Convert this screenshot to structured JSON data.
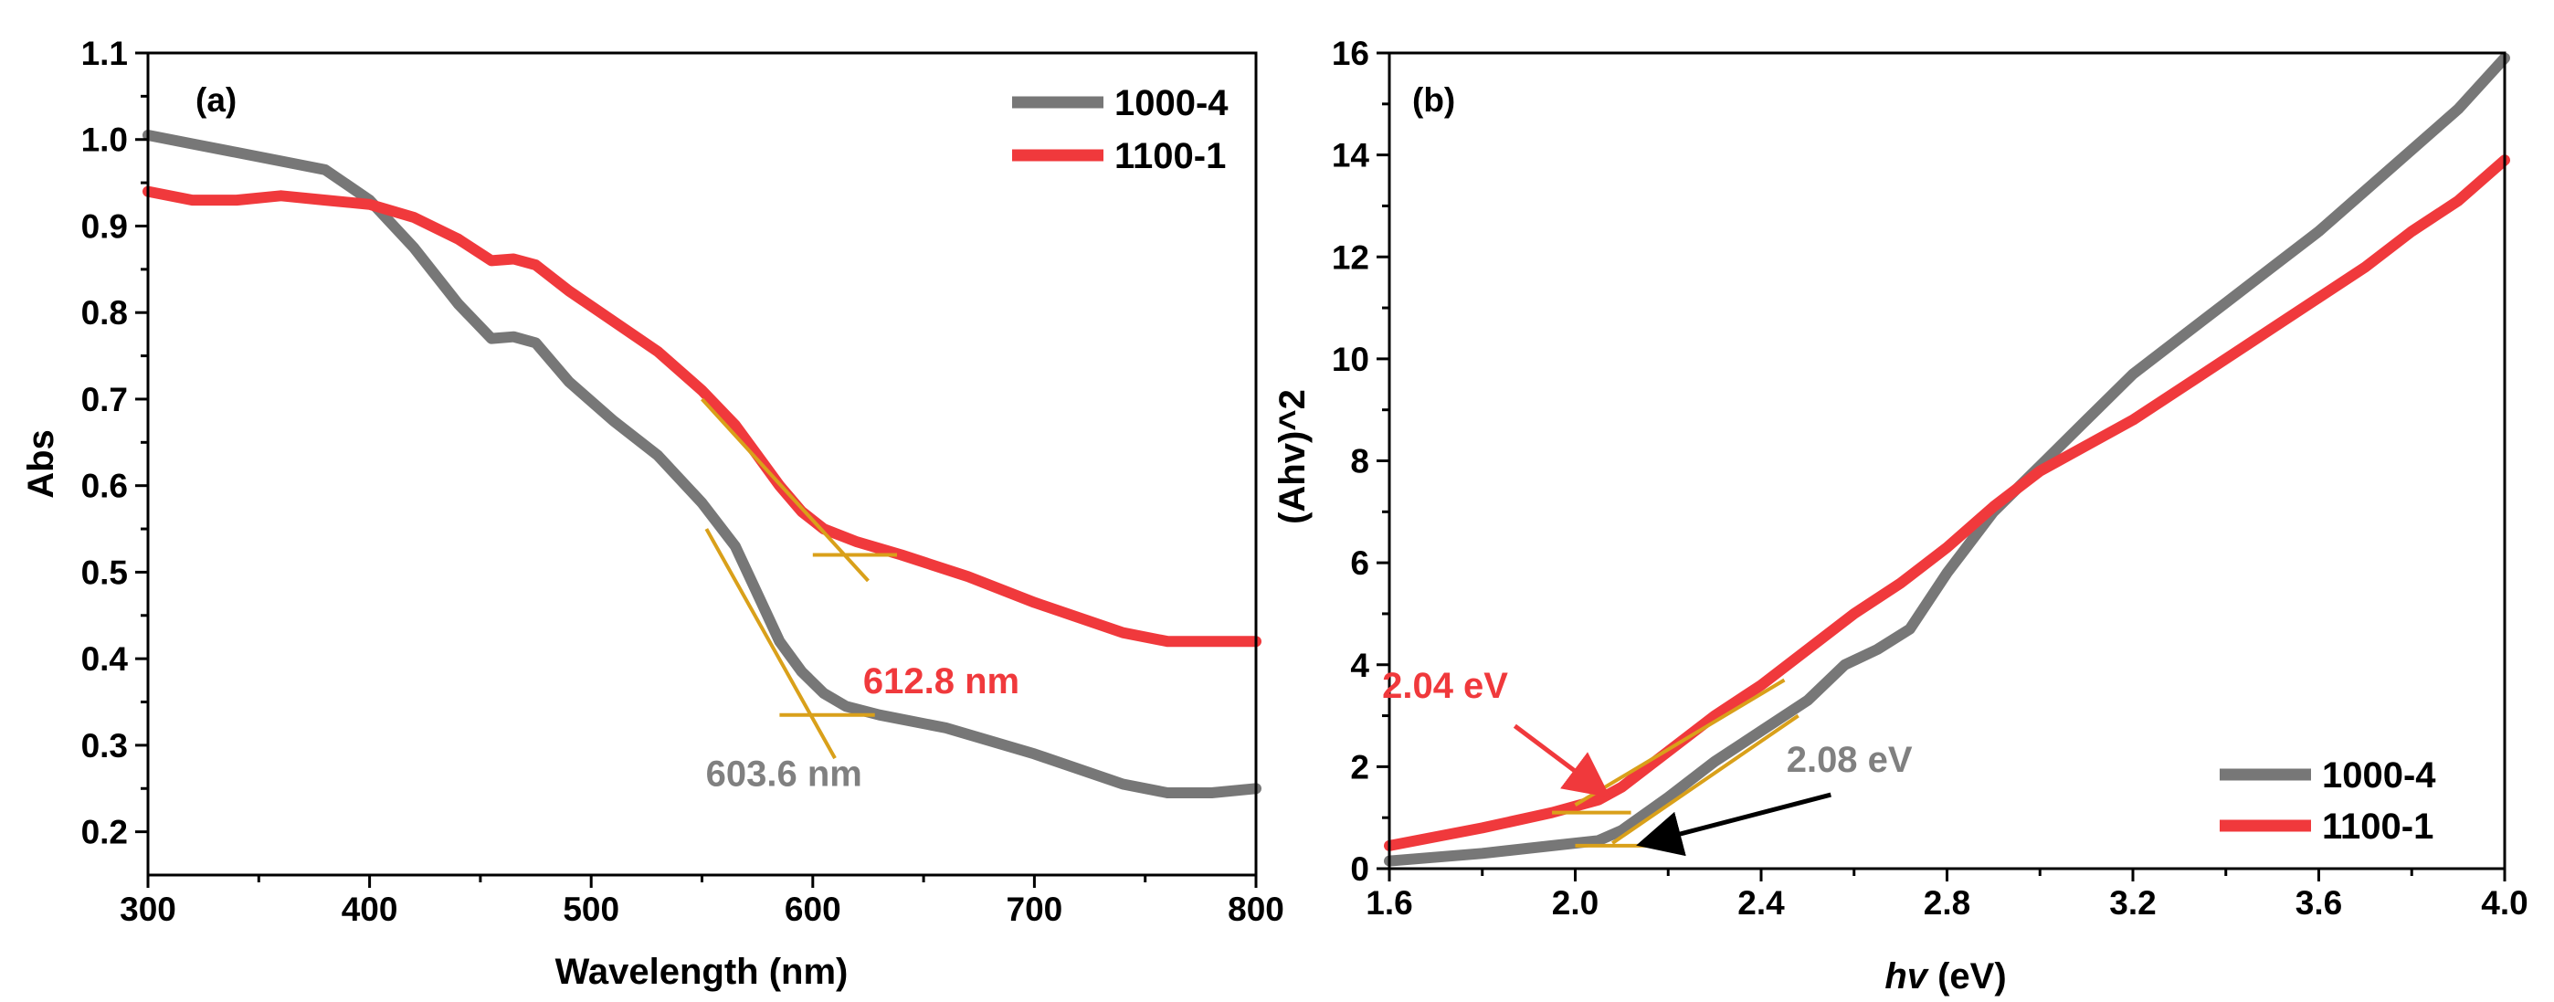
{
  "chart_data": [
    {
      "type": "line",
      "panel_label": "(a)",
      "xlabel": "Wavelength (nm)",
      "ylabel": "Abs",
      "xlim": [
        300,
        800
      ],
      "ylim": [
        0.15,
        1.1
      ],
      "x_ticks": [
        300,
        400,
        500,
        600,
        700,
        800
      ],
      "x_tick_labels": [
        "300",
        "400",
        "500",
        "600",
        "700",
        "800"
      ],
      "y_ticks": [
        0.2,
        0.3,
        0.4,
        0.5,
        0.6,
        0.7,
        0.8,
        0.9,
        1.0,
        1.1
      ],
      "y_tick_labels": [
        "0.2",
        "0.3",
        "0.4",
        "0.5",
        "0.6",
        "0.7",
        "0.8",
        "0.9",
        "1.0",
        "1.1"
      ],
      "legend_position": "top-right",
      "series": [
        {
          "name": "1000-4",
          "color": "#777777",
          "x": [
            300,
            320,
            340,
            360,
            380,
            400,
            420,
            440,
            455,
            465,
            475,
            490,
            510,
            530,
            550,
            565,
            575,
            585,
            595,
            605,
            615,
            630,
            660,
            700,
            740,
            760,
            780,
            800
          ],
          "y": [
            1.005,
            0.995,
            0.985,
            0.975,
            0.965,
            0.93,
            0.875,
            0.81,
            0.77,
            0.772,
            0.765,
            0.72,
            0.675,
            0.635,
            0.58,
            0.53,
            0.475,
            0.42,
            0.385,
            0.36,
            0.345,
            0.335,
            0.32,
            0.29,
            0.255,
            0.245,
            0.245,
            0.25
          ]
        },
        {
          "name": "1100-1",
          "color": "#f0393c",
          "x": [
            300,
            320,
            340,
            360,
            380,
            400,
            420,
            440,
            455,
            465,
            475,
            490,
            510,
            530,
            550,
            565,
            575,
            585,
            595,
            605,
            620,
            640,
            670,
            700,
            740,
            760,
            780,
            800
          ],
          "y": [
            0.94,
            0.93,
            0.93,
            0.935,
            0.93,
            0.925,
            0.91,
            0.885,
            0.86,
            0.862,
            0.855,
            0.825,
            0.79,
            0.755,
            0.71,
            0.67,
            0.635,
            0.6,
            0.57,
            0.55,
            0.535,
            0.52,
            0.495,
            0.465,
            0.43,
            0.42,
            0.42,
            0.42
          ]
        }
      ],
      "tangent_lines": [
        {
          "series": "1000-4",
          "x1": 552,
          "y1": 0.55,
          "x2": 610,
          "y2": 0.285
        },
        {
          "series": "1000-4",
          "x1": 585,
          "y1": 0.335,
          "x2": 628,
          "y2": 0.335
        },
        {
          "series": "1100-1",
          "x1": 550,
          "y1": 0.7,
          "x2": 625,
          "y2": 0.49
        },
        {
          "series": "1100-1",
          "x1": 600,
          "y1": 0.52,
          "x2": 638,
          "y2": 0.52
        }
      ],
      "tangent_color": "#d9a01a",
      "annotations": [
        {
          "text": "612.8 nm",
          "x": 658,
          "y": 0.36,
          "color": "#f0393c"
        },
        {
          "text": "603.6 nm",
          "x": 587,
          "y": 0.253,
          "color": "#808080"
        }
      ]
    },
    {
      "type": "line",
      "panel_label": "(b)",
      "xlabel_italic": "hv",
      "xlabel_rest": " (eV)",
      "ylabel": "(Ahv)^2",
      "xlim": [
        1.6,
        4.0
      ],
      "ylim": [
        0,
        16
      ],
      "x_ticks": [
        1.6,
        2.0,
        2.4,
        2.8,
        3.2,
        3.6,
        4.0
      ],
      "x_tick_labels": [
        "1.6",
        "2.0",
        "2.4",
        "2.8",
        "3.2",
        "3.6",
        "4.0"
      ],
      "y_ticks": [
        0,
        2,
        4,
        6,
        8,
        10,
        12,
        14,
        16
      ],
      "y_tick_labels": [
        "0",
        "2",
        "4",
        "6",
        "8",
        "10",
        "12",
        "14",
        "16"
      ],
      "legend_position": "bottom-right",
      "series": [
        {
          "name": "1000-4",
          "color": "#777777",
          "x": [
            1.6,
            1.8,
            1.95,
            2.05,
            2.1,
            2.2,
            2.3,
            2.4,
            2.5,
            2.58,
            2.65,
            2.72,
            2.8,
            2.9,
            3.0,
            3.1,
            3.2,
            3.3,
            3.4,
            3.5,
            3.6,
            3.7,
            3.8,
            3.9,
            4.0
          ],
          "y": [
            0.15,
            0.3,
            0.45,
            0.55,
            0.75,
            1.4,
            2.1,
            2.7,
            3.3,
            4.0,
            4.3,
            4.7,
            5.8,
            7.0,
            7.9,
            8.8,
            9.7,
            10.4,
            11.1,
            11.8,
            12.5,
            13.3,
            14.1,
            14.9,
            15.9
          ]
        },
        {
          "name": "1100-1",
          "color": "#f0393c",
          "x": [
            1.6,
            1.8,
            1.95,
            2.05,
            2.1,
            2.2,
            2.3,
            2.4,
            2.5,
            2.6,
            2.7,
            2.8,
            2.9,
            3.0,
            3.1,
            3.2,
            3.3,
            3.4,
            3.5,
            3.6,
            3.7,
            3.8,
            3.9,
            4.0
          ],
          "y": [
            0.45,
            0.8,
            1.1,
            1.35,
            1.6,
            2.3,
            3.0,
            3.6,
            4.3,
            5.0,
            5.6,
            6.3,
            7.1,
            7.8,
            8.3,
            8.8,
            9.4,
            10.0,
            10.6,
            11.2,
            11.8,
            12.5,
            13.1,
            13.9
          ]
        }
      ],
      "tangent_lines": [
        {
          "series": "1100-1",
          "x1": 2.0,
          "y1": 1.25,
          "x2": 2.45,
          "y2": 3.7
        },
        {
          "series": "1100-1",
          "x1": 1.95,
          "y1": 1.1,
          "x2": 2.12,
          "y2": 1.1
        },
        {
          "series": "1000-4",
          "x1": 2.08,
          "y1": 0.5,
          "x2": 2.48,
          "y2": 3.0
        },
        {
          "series": "1000-4",
          "x1": 2.0,
          "y1": 0.45,
          "x2": 2.18,
          "y2": 0.45
        }
      ],
      "tangent_color": "#d9a01a",
      "annotations": [
        {
          "text": "2.04 eV",
          "x": 1.72,
          "y": 3.35,
          "color": "#f0393c"
        },
        {
          "text": "2.08 eV",
          "x": 2.59,
          "y": 1.9,
          "color": "#808080"
        }
      ],
      "arrows": [
        {
          "x1": 1.87,
          "y1": 2.8,
          "x2": 2.06,
          "y2": 1.5,
          "color": "#f0393c"
        },
        {
          "x1": 2.55,
          "y1": 1.45,
          "x2": 2.15,
          "y2": 0.5,
          "color": "#000000"
        }
      ]
    }
  ]
}
